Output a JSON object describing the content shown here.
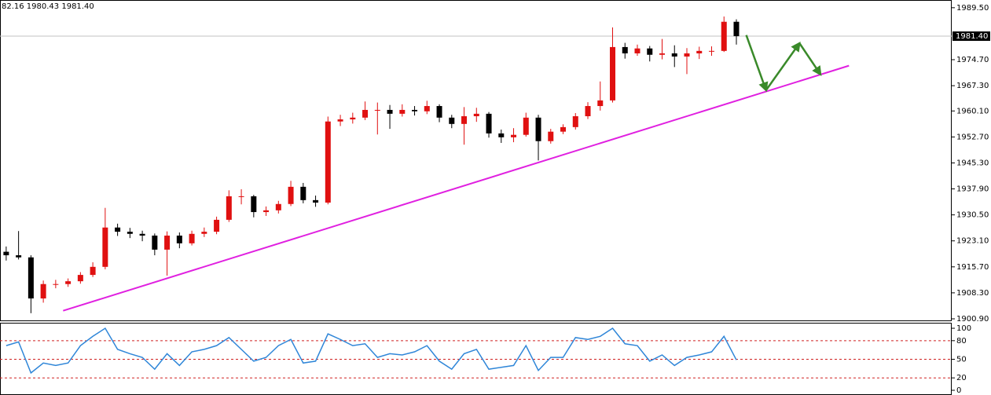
{
  "chart_data": [
    {
      "type": "candlestick",
      "header_text": "82.16 1980.43 1981.40",
      "up_color": "#e01010",
      "down_color": "#000000",
      "xlim": [
        -0.5,
        76.4
      ],
      "ylim": [
        1900.45,
        1991.7
      ],
      "yticks": [
        {
          "value": 1989.5,
          "label": "1989.50"
        },
        {
          "value": 1974.7,
          "label": "1974.70"
        },
        {
          "value": 1967.3,
          "label": "1967.30"
        },
        {
          "value": 1960.1,
          "label": "1960.10"
        },
        {
          "value": 1952.7,
          "label": "1952.70"
        },
        {
          "value": 1945.3,
          "label": "1945.30"
        },
        {
          "value": 1937.9,
          "label": "1937.90"
        },
        {
          "value": 1930.5,
          "label": "1930.50"
        },
        {
          "value": 1923.1,
          "label": "1923.10"
        },
        {
          "value": 1915.7,
          "label": "1915.70"
        },
        {
          "value": 1908.3,
          "label": "1908.30"
        },
        {
          "value": 1900.9,
          "label": "1900.90"
        }
      ],
      "last_price": {
        "value": 1981.4,
        "label": "1981.40"
      },
      "ohlc": [
        [
          1920.0,
          1921.5,
          1917.5,
          1919.0
        ],
        [
          1919.0,
          1925.9,
          1917.8,
          1918.4
        ],
        [
          1918.4,
          1919.0,
          1902.5,
          1906.7
        ],
        [
          1906.7,
          1911.8,
          1905.5,
          1910.8
        ],
        [
          1910.8,
          1912.0,
          1909.6,
          1910.8
        ],
        [
          1910.8,
          1912.4,
          1910.0,
          1911.6
        ],
        [
          1911.6,
          1914.2,
          1910.9,
          1913.4
        ],
        [
          1913.4,
          1917.0,
          1912.8,
          1915.7
        ],
        [
          1915.7,
          1932.5,
          1915.0,
          1926.9
        ],
        [
          1926.9,
          1928.0,
          1924.5,
          1925.7
        ],
        [
          1925.7,
          1926.8,
          1923.9,
          1925.1
        ],
        [
          1925.1,
          1926.0,
          1923.0,
          1924.6
        ],
        [
          1924.6,
          1925.2,
          1919.0,
          1920.6
        ],
        [
          1920.6,
          1925.8,
          1913.2,
          1924.6
        ],
        [
          1924.6,
          1925.5,
          1921.0,
          1922.4
        ],
        [
          1922.4,
          1926.0,
          1921.8,
          1925.1
        ],
        [
          1925.1,
          1926.9,
          1924.2,
          1925.7
        ],
        [
          1925.7,
          1930.0,
          1925.0,
          1929.1
        ],
        [
          1929.1,
          1937.5,
          1928.5,
          1935.8
        ],
        [
          1935.8,
          1937.8,
          1933.5,
          1935.8
        ],
        [
          1935.8,
          1936.2,
          1929.8,
          1931.3
        ],
        [
          1931.3,
          1932.9,
          1930.2,
          1931.8
        ],
        [
          1931.8,
          1934.5,
          1930.9,
          1933.6
        ],
        [
          1933.6,
          1940.2,
          1933.0,
          1938.5
        ],
        [
          1938.5,
          1939.6,
          1933.8,
          1934.7
        ],
        [
          1934.7,
          1936.0,
          1932.8,
          1934.0
        ],
        [
          1934.0,
          1958.5,
          1933.5,
          1957.1
        ],
        [
          1957.1,
          1959.0,
          1955.8,
          1957.7
        ],
        [
          1957.7,
          1959.6,
          1956.5,
          1958.2
        ],
        [
          1958.2,
          1962.8,
          1957.5,
          1960.4
        ],
        [
          1960.4,
          1962.5,
          1953.4,
          1960.4
        ],
        [
          1960.4,
          1961.8,
          1955.0,
          1959.3
        ],
        [
          1959.3,
          1962.0,
          1958.5,
          1960.4
        ],
        [
          1960.4,
          1961.5,
          1958.8,
          1960.0
        ],
        [
          1960.0,
          1963.0,
          1959.2,
          1961.5
        ],
        [
          1961.5,
          1962.0,
          1956.9,
          1958.2
        ],
        [
          1958.2,
          1959.0,
          1955.2,
          1956.4
        ],
        [
          1956.4,
          1961.2,
          1950.5,
          1958.6
        ],
        [
          1958.6,
          1961.0,
          1957.0,
          1959.3
        ],
        [
          1959.3,
          1959.8,
          1952.5,
          1953.7
        ],
        [
          1953.7,
          1954.8,
          1951.0,
          1952.6
        ],
        [
          1952.6,
          1955.2,
          1951.2,
          1953.3
        ],
        [
          1953.3,
          1959.6,
          1952.8,
          1958.2
        ],
        [
          1958.2,
          1959.0,
          1946.0,
          1951.5
        ],
        [
          1951.5,
          1955.0,
          1950.8,
          1954.2
        ],
        [
          1954.2,
          1956.3,
          1953.5,
          1955.5
        ],
        [
          1955.5,
          1959.5,
          1954.8,
          1958.6
        ],
        [
          1958.6,
          1962.6,
          1957.8,
          1961.5
        ],
        [
          1961.5,
          1968.5,
          1960.2,
          1963.1
        ],
        [
          1963.1,
          1983.9,
          1962.5,
          1978.3
        ],
        [
          1978.3,
          1979.5,
          1975.0,
          1976.5
        ],
        [
          1976.5,
          1979.0,
          1975.8,
          1977.9
        ],
        [
          1977.9,
          1978.6,
          1974.2,
          1976.1
        ],
        [
          1976.1,
          1980.6,
          1974.8,
          1976.5
        ],
        [
          1976.5,
          1978.8,
          1972.6,
          1975.6
        ],
        [
          1975.6,
          1978.0,
          1970.6,
          1976.5
        ],
        [
          1976.5,
          1978.4,
          1974.9,
          1977.2
        ],
        [
          1977.2,
          1978.5,
          1975.8,
          1977.2
        ],
        [
          1977.2,
          1987.0,
          1976.9,
          1985.5
        ],
        [
          1985.5,
          1986.2,
          1979.0,
          1981.4
        ]
      ],
      "trendline": {
        "color": "#e020e0",
        "x": [
          4.6,
          68.1
        ],
        "y": [
          1903.2,
          1973.0
        ]
      },
      "arrow": {
        "color": "#3a8a2a",
        "x": [
          59.8,
          61.4,
          64.1,
          65.8
        ],
        "y": [
          1981.7,
          1966.0,
          1979.4,
          1970.5
        ]
      }
    },
    {
      "type": "line",
      "color": "#2f86d8",
      "xlim": [
        -0.5,
        76.4
      ],
      "ylim": [
        -7.6,
        108.9
      ],
      "yticks": [
        100,
        80,
        50,
        20,
        0
      ],
      "levels": [
        80,
        50,
        20
      ],
      "level_color": "#d02020",
      "values": [
        72,
        78,
        28,
        44,
        40,
        44,
        72,
        87,
        100,
        66,
        59,
        53,
        34,
        59,
        40,
        62,
        66,
        72,
        85,
        66,
        47,
        53,
        72,
        82,
        44,
        47,
        91,
        82,
        72,
        75,
        53,
        59,
        57,
        62,
        72,
        47,
        34,
        59,
        66,
        34,
        37,
        40,
        72,
        32,
        53,
        53,
        85,
        82,
        87,
        100,
        75,
        72,
        47,
        57,
        40,
        53,
        57,
        62,
        87,
        49
      ]
    }
  ]
}
